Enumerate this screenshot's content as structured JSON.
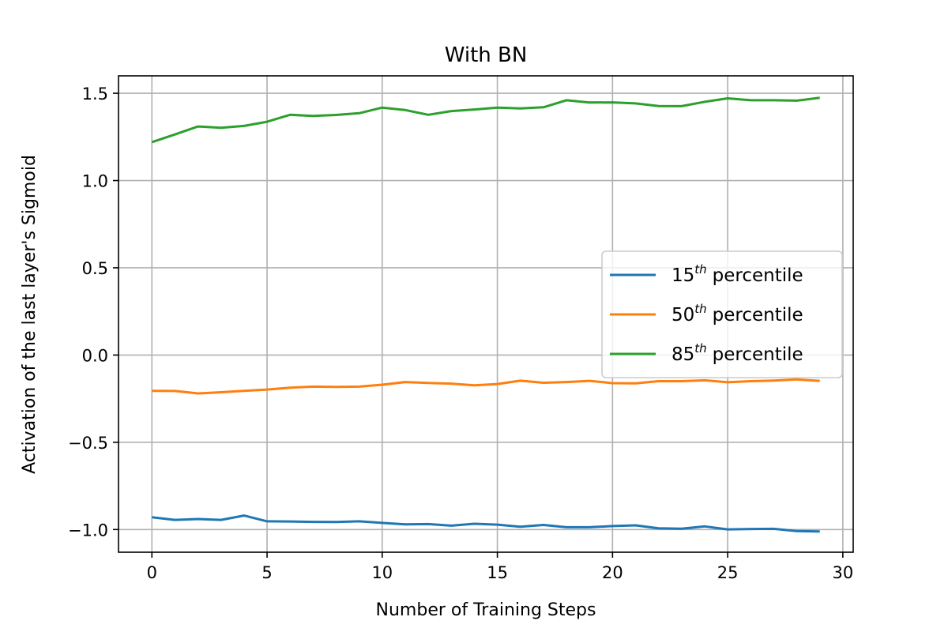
{
  "chart_data": {
    "type": "line",
    "title": "With BN",
    "xlabel": "Number of Training Steps",
    "ylabel": "Activation of the last layer's Sigmoid",
    "xlim": [
      -1.45,
      30.45
    ],
    "ylim": [
      -1.13,
      1.6
    ],
    "xticks": [
      0,
      5,
      10,
      15,
      20,
      25,
      30
    ],
    "xtick_labels": [
      "0",
      "5",
      "10",
      "15",
      "20",
      "25",
      "30"
    ],
    "yticks": [
      -1.0,
      -0.5,
      0.0,
      0.5,
      1.0,
      1.5
    ],
    "ytick_labels": [
      "−1.0",
      "−0.5",
      "0.0",
      "0.5",
      "1.0",
      "1.5"
    ],
    "grid": true,
    "legend_position": "center-right",
    "x": [
      0,
      1,
      2,
      3,
      4,
      5,
      6,
      7,
      8,
      9,
      10,
      11,
      12,
      13,
      14,
      15,
      16,
      17,
      18,
      19,
      20,
      21,
      22,
      23,
      24,
      25,
      26,
      27,
      28,
      29
    ],
    "series": [
      {
        "name": "15th percentile",
        "name_base": "15",
        "name_sup": "th",
        "name_rest": "percentile",
        "color": "#1f77b4",
        "values": [
          -0.93,
          -0.945,
          -0.94,
          -0.945,
          -0.92,
          -0.953,
          -0.954,
          -0.956,
          -0.957,
          -0.953,
          -0.962,
          -0.97,
          -0.969,
          -0.978,
          -0.967,
          -0.972,
          -0.984,
          -0.974,
          -0.987,
          -0.987,
          -0.98,
          -0.976,
          -0.993,
          -0.995,
          -0.982,
          -0.999,
          -0.997,
          -0.996,
          -1.009,
          -1.011
        ]
      },
      {
        "name": "50th percentile",
        "name_base": "50",
        "name_sup": "th",
        "name_rest": "percentile",
        "color": "#ff7f0e",
        "values": [
          -0.205,
          -0.206,
          -0.22,
          -0.213,
          -0.205,
          -0.198,
          -0.187,
          -0.181,
          -0.183,
          -0.181,
          -0.17,
          -0.155,
          -0.16,
          -0.164,
          -0.174,
          -0.166,
          -0.147,
          -0.159,
          -0.155,
          -0.148,
          -0.161,
          -0.162,
          -0.15,
          -0.15,
          -0.145,
          -0.156,
          -0.15,
          -0.146,
          -0.14,
          -0.148
        ]
      },
      {
        "name": "85th percentile",
        "name_base": "85",
        "name_sup": "th",
        "name_rest": "percentile",
        "color": "#2ca02c",
        "values": [
          1.22,
          1.264,
          1.31,
          1.302,
          1.313,
          1.337,
          1.377,
          1.37,
          1.376,
          1.386,
          1.418,
          1.404,
          1.377,
          1.398,
          1.407,
          1.418,
          1.413,
          1.42,
          1.46,
          1.447,
          1.448,
          1.442,
          1.427,
          1.426,
          1.451,
          1.471,
          1.46,
          1.46,
          1.458,
          1.474
        ]
      }
    ]
  }
}
